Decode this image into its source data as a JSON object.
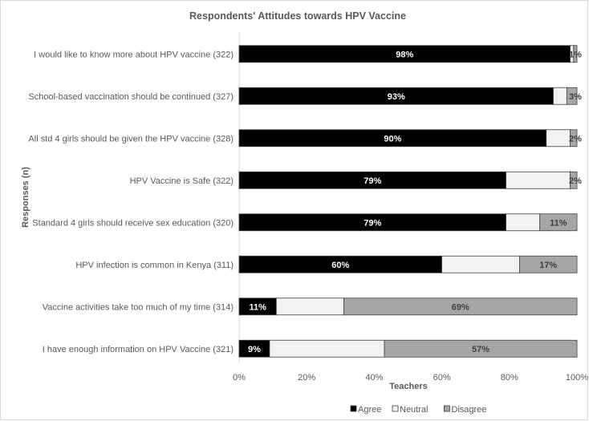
{
  "chart_data": {
    "type": "bar",
    "stacked": true,
    "orientation": "horizontal",
    "title": "Respondents' Attitudes towards HPV Vaccine",
    "xlabel": "Teachers",
    "ylabel": "Responses (n)",
    "xlim": [
      0,
      100
    ],
    "x_ticks": [
      "0%",
      "20%",
      "40%",
      "60%",
      "80%",
      "100%"
    ],
    "grid": false,
    "legend_position": "bottom",
    "categories": [
      "I would like to know more about HPV vaccine (322)",
      "School-based vaccination should be continued (327)",
      "All std 4 girls should be given the HPV vaccine (328)",
      "HPV Vaccine is Safe (322)",
      "Standard 4 girls should receive sex education (320)",
      "HPV infection is common in Kenya (311)",
      "Vaccine activities take too much of my time (314)",
      "I have enough information on HPV Vaccine (321)"
    ],
    "series": [
      {
        "name": "Agree",
        "color": "#000000",
        "label_color": "#ffffff",
        "values": [
          98,
          93,
          90,
          79,
          79,
          60,
          11,
          9
        ],
        "labels": [
          "98%",
          "93%",
          "90%",
          "79%",
          "79%",
          "60%",
          "11%",
          "9%"
        ]
      },
      {
        "name": "Neutral",
        "color": "#f2f2f2",
        "label_color": "#404040",
        "values": [
          1,
          4,
          7,
          19,
          10,
          23,
          20,
          34
        ],
        "labels": [
          "",
          "",
          "",
          "",
          "",
          "",
          "",
          ""
        ]
      },
      {
        "name": "Disagree",
        "color": "#a6a6a6",
        "label_color": "#404040",
        "values": [
          1,
          3,
          2,
          2,
          11,
          17,
          69,
          57
        ],
        "labels": [
          "1%",
          "3%",
          "2%",
          "2%",
          "11%",
          "17%",
          "69%",
          "57%"
        ]
      }
    ]
  }
}
